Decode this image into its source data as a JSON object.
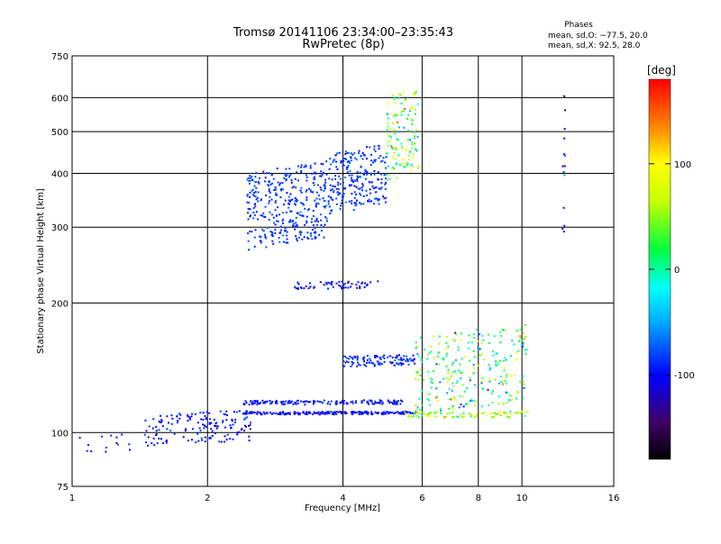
{
  "chart_data": {
    "type": "scatter",
    "title": "Tromsø 20141106 23:34:00–23:35:43",
    "subtitle": "RwPretec (8p)",
    "xlabel": "Frequency [MHz]",
    "ylabel": "Stationary phase Virtual Height [km]",
    "x_scale": "log",
    "y_scale": "log",
    "xlim": [
      1,
      16
    ],
    "ylim": [
      75,
      750
    ],
    "x_ticks": [
      1,
      2,
      4,
      6,
      8,
      10,
      16
    ],
    "x_tick_labels": [
      "1",
      "2",
      "4",
      "6",
      "8",
      "10",
      "16"
    ],
    "y_ticks": [
      75,
      100,
      200,
      300,
      400,
      500,
      600,
      750
    ],
    "y_tick_labels": [
      "75",
      "100",
      "200",
      "300",
      "400",
      "500",
      "600",
      "750"
    ],
    "grid": true,
    "legend": {
      "title": "Phases",
      "lines": [
        "mean, sd,O: −77.5, 20.0",
        "mean, sd,X:  92.5, 28.0"
      ],
      "placement": "top-right"
    },
    "colorbar": {
      "label": "[deg]",
      "range": [
        -180,
        180
      ],
      "ticks": [
        100,
        0,
        -100
      ],
      "tick_labels": [
        "100",
        "0",
        "-100"
      ],
      "placement": "right"
    },
    "traces": [
      {
        "x_range": [
          1.03,
          1.35
        ],
        "y_range": [
          88,
          100
        ],
        "phase": -95,
        "phase_sd": 15,
        "n": 14
      },
      {
        "x_range": [
          1.45,
          2.5
        ],
        "y_range": [
          93,
          113
        ],
        "phase": -95,
        "phase_sd": 18,
        "n": 150
      },
      {
        "x_range": [
          2.4,
          5.8
        ],
        "y_range": [
          110,
          112
        ],
        "phase": -100,
        "phase_sd": 14,
        "n": 210
      },
      {
        "x_range": [
          2.4,
          5.5
        ],
        "y_range": [
          116,
          119
        ],
        "phase": -95,
        "phase_sd": 15,
        "n": 160
      },
      {
        "x_range": [
          5.5,
          10.3
        ],
        "y_range": [
          108,
          112
        ],
        "phase": 60,
        "phase_sd": 60,
        "n": 90
      },
      {
        "x_range": [
          4.0,
          5.8
        ],
        "y_range": [
          142,
          152
        ],
        "phase": -90,
        "phase_sd": 14,
        "n": 110
      },
      {
        "x_range": [
          5.8,
          10.3
        ],
        "y_range": [
          110,
          180
        ],
        "phase": 10,
        "phase_sd": 90,
        "n": 260
      },
      {
        "x_range": [
          3.1,
          4.8
        ],
        "y_range": [
          215,
          225
        ],
        "phase": -100,
        "phase_sd": 12,
        "n": 55
      },
      {
        "x_range": [
          2.45,
          3.7
        ],
        "y_range": [
          265,
          430
        ],
        "phase": -85,
        "phase_sd": 15,
        "n": 360
      },
      {
        "x_range": [
          3.7,
          5.0
        ],
        "y_range": [
          320,
          470
        ],
        "phase": -85,
        "phase_sd": 15,
        "n": 230
      },
      {
        "x_range": [
          5.0,
          5.9
        ],
        "y_range": [
          380,
          650
        ],
        "phase": 30,
        "phase_sd": 80,
        "n": 130
      },
      {
        "x_range": [
          12.3,
          12.5
        ],
        "y_range": [
          260,
          650
        ],
        "phase": -100,
        "phase_sd": 40,
        "n": 14
      }
    ]
  }
}
